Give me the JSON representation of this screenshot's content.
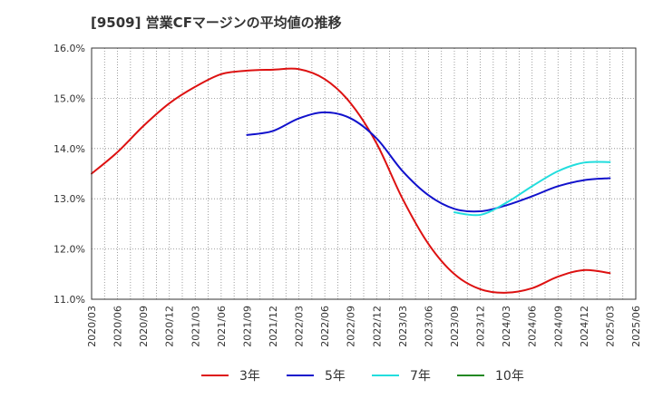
{
  "chart_data": {
    "type": "line",
    "title": "[9509]  営業CFマージンの平均値の推移",
    "xlabel": "",
    "ylabel": "",
    "ylim": [
      11.0,
      16.0
    ],
    "yticks": [
      "11.0%",
      "12.0%",
      "13.0%",
      "14.0%",
      "15.0%",
      "16.0%"
    ],
    "ytick_values": [
      11.0,
      12.0,
      13.0,
      14.0,
      15.0,
      16.0
    ],
    "xticks": [
      "2020/03",
      "2020/06",
      "2020/09",
      "2020/12",
      "2021/03",
      "2021/06",
      "2021/09",
      "2021/12",
      "2022/03",
      "2022/06",
      "2022/09",
      "2022/12",
      "2023/03",
      "2023/06",
      "2023/09",
      "2023/12",
      "2024/03",
      "2024/06",
      "2024/09",
      "2024/12",
      "2025/03",
      "2025/06"
    ],
    "grid": true,
    "legend_position": "bottom",
    "series": [
      {
        "name": "3年",
        "color": "#dd1111",
        "x": [
          "2020/03",
          "2020/06",
          "2020/09",
          "2020/12",
          "2021/03",
          "2021/06",
          "2021/09",
          "2021/12",
          "2022/03",
          "2022/06",
          "2022/09",
          "2022/12",
          "2023/03",
          "2023/06",
          "2023/09",
          "2023/12",
          "2024/03",
          "2024/06",
          "2024/09",
          "2024/12",
          "2025/03"
        ],
        "values": [
          13.5,
          13.93,
          14.45,
          14.9,
          15.23,
          15.48,
          15.55,
          15.57,
          15.58,
          15.38,
          14.9,
          14.1,
          13.0,
          12.1,
          11.5,
          11.2,
          11.13,
          11.22,
          11.45,
          11.58,
          11.52
        ]
      },
      {
        "name": "5年",
        "color": "#1111cc",
        "x": [
          "2021/09",
          "2021/12",
          "2022/03",
          "2022/06",
          "2022/09",
          "2022/12",
          "2023/03",
          "2023/06",
          "2023/09",
          "2023/12",
          "2024/03",
          "2024/06",
          "2024/09",
          "2024/12",
          "2025/03"
        ],
        "values": [
          14.27,
          14.35,
          14.6,
          14.72,
          14.6,
          14.2,
          13.55,
          13.07,
          12.8,
          12.75,
          12.87,
          13.05,
          13.25,
          13.37,
          13.41
        ]
      },
      {
        "name": "7年",
        "color": "#22dddd",
        "x": [
          "2023/09",
          "2023/12",
          "2024/03",
          "2024/06",
          "2024/09",
          "2024/12",
          "2025/03"
        ],
        "values": [
          12.73,
          12.68,
          12.92,
          13.25,
          13.55,
          13.72,
          13.73
        ]
      },
      {
        "name": "10年",
        "color": "#228822",
        "x": [],
        "values": []
      }
    ]
  }
}
